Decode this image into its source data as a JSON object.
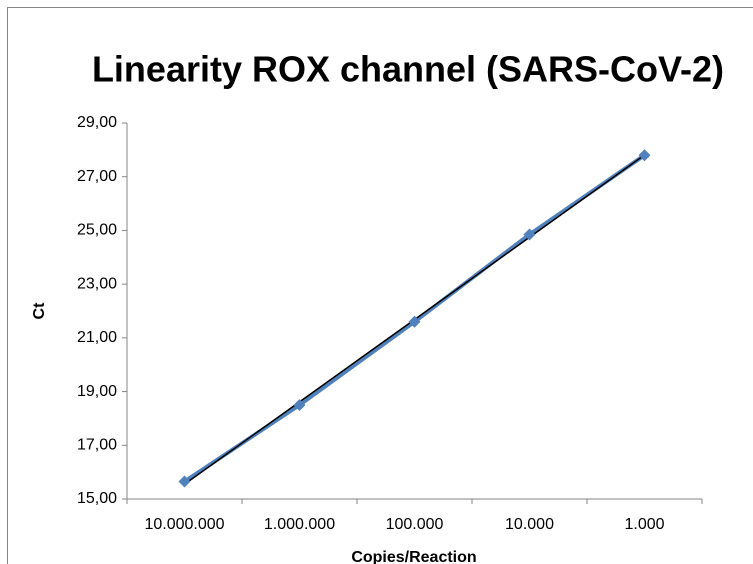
{
  "chart_data": {
    "type": "line",
    "title": "Linearity ROX channel (SARS-CoV-2)",
    "x_label": "Copies/Reaction",
    "y_label": "Ct",
    "categories": [
      "10.000.000",
      "1.000.000",
      "100.000",
      "10.000",
      "1.000"
    ],
    "series": [
      {
        "color": "#4f81bd",
        "values": [
          15.65,
          18.5,
          21.6,
          24.85,
          27.8
        ]
      }
    ],
    "trendline": {
      "type": "linear",
      "color": "#000000"
    },
    "ylim": [
      15,
      29
    ],
    "yticks": [
      {
        "value": 15,
        "label": "15,00"
      },
      {
        "value": 17,
        "label": "17,00"
      },
      {
        "value": 19,
        "label": "19,00"
      },
      {
        "value": 21,
        "label": "21,00"
      },
      {
        "value": 23,
        "label": "23,00"
      },
      {
        "value": 25,
        "label": "25,00"
      },
      {
        "value": 27,
        "label": "27,00"
      },
      {
        "value": 29,
        "label": "29,00"
      }
    ]
  }
}
